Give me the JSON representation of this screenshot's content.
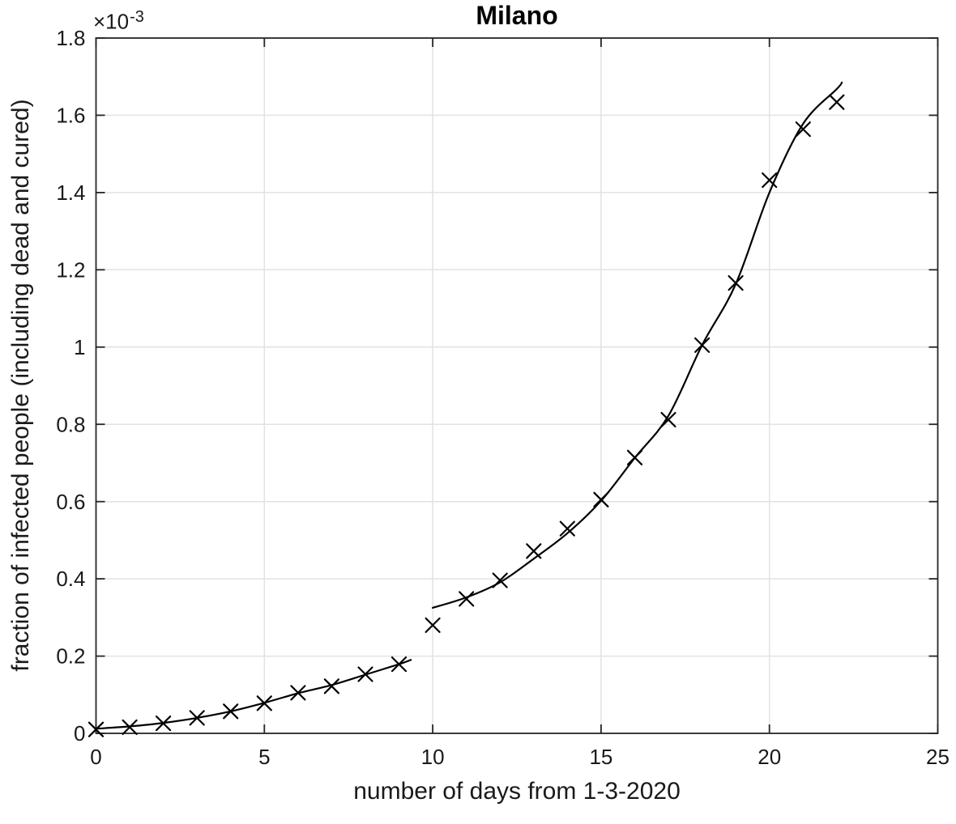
{
  "figure": {
    "background": "#ffffff"
  },
  "chart_data": {
    "type": "scatter",
    "title": "Milano",
    "xlabel": "number of days from 1-3-2020",
    "ylabel": "fraction of infected people (including dead and cured)",
    "y_exponent": {
      "prefix": "×10",
      "exponent": "-3"
    },
    "y_unit_multiplier": 0.001,
    "xlim": [
      0,
      25
    ],
    "ylim": [
      0,
      1.8
    ],
    "grid": true,
    "legend": "none",
    "xticks": {
      "values": [
        0,
        5,
        10,
        15,
        20,
        25
      ],
      "labels": [
        "0",
        "5",
        "10",
        "15",
        "20",
        "25"
      ]
    },
    "yticks": {
      "values": [
        0,
        0.2,
        0.4,
        0.6,
        0.8,
        1.0,
        1.2,
        1.4,
        1.6,
        1.8
      ],
      "labels": [
        "0",
        "0.2",
        "0.4",
        "0.6",
        "0.8",
        "1",
        "1.2",
        "1.4",
        "1.6",
        "1.8"
      ]
    },
    "series": [
      {
        "name": "observed-data",
        "type": "scatter",
        "marker": "x",
        "color": "#000000",
        "x": [
          0,
          1,
          2,
          3,
          4,
          5,
          6,
          7,
          8,
          9,
          10,
          11,
          12,
          13,
          14,
          15,
          16,
          17,
          18,
          19,
          20,
          21,
          22
        ],
        "y": [
          0.01,
          0.016,
          0.026,
          0.04,
          0.057,
          0.078,
          0.105,
          0.122,
          0.153,
          0.179,
          0.28,
          0.348,
          0.396,
          0.472,
          0.53,
          0.605,
          0.714,
          0.812,
          1.005,
          1.166,
          1.432,
          1.564,
          1.634
        ]
      },
      {
        "name": "fit-curve-segment-1",
        "type": "line",
        "color": "#000000",
        "x": [
          0,
          1,
          2,
          3,
          4,
          5,
          6,
          7,
          8,
          9,
          9.35
        ],
        "y": [
          0.012,
          0.018,
          0.027,
          0.04,
          0.057,
          0.079,
          0.104,
          0.125,
          0.152,
          0.179,
          0.19
        ]
      },
      {
        "name": "fit-curve-segment-2",
        "type": "line",
        "color": "#000000",
        "x": [
          10,
          11,
          12,
          13,
          14,
          15,
          16,
          17,
          18,
          19,
          20,
          21,
          22,
          22.15
        ],
        "y": [
          0.325,
          0.352,
          0.391,
          0.452,
          0.518,
          0.602,
          0.713,
          0.822,
          1.005,
          1.163,
          1.4,
          1.578,
          1.668,
          1.685
        ]
      }
    ],
    "style": {
      "axis_color": "#262626",
      "grid_color": "#e2e2e2",
      "text_color": "#1a1a1a",
      "marker_color": "#000000",
      "line_color": "#000000"
    }
  }
}
